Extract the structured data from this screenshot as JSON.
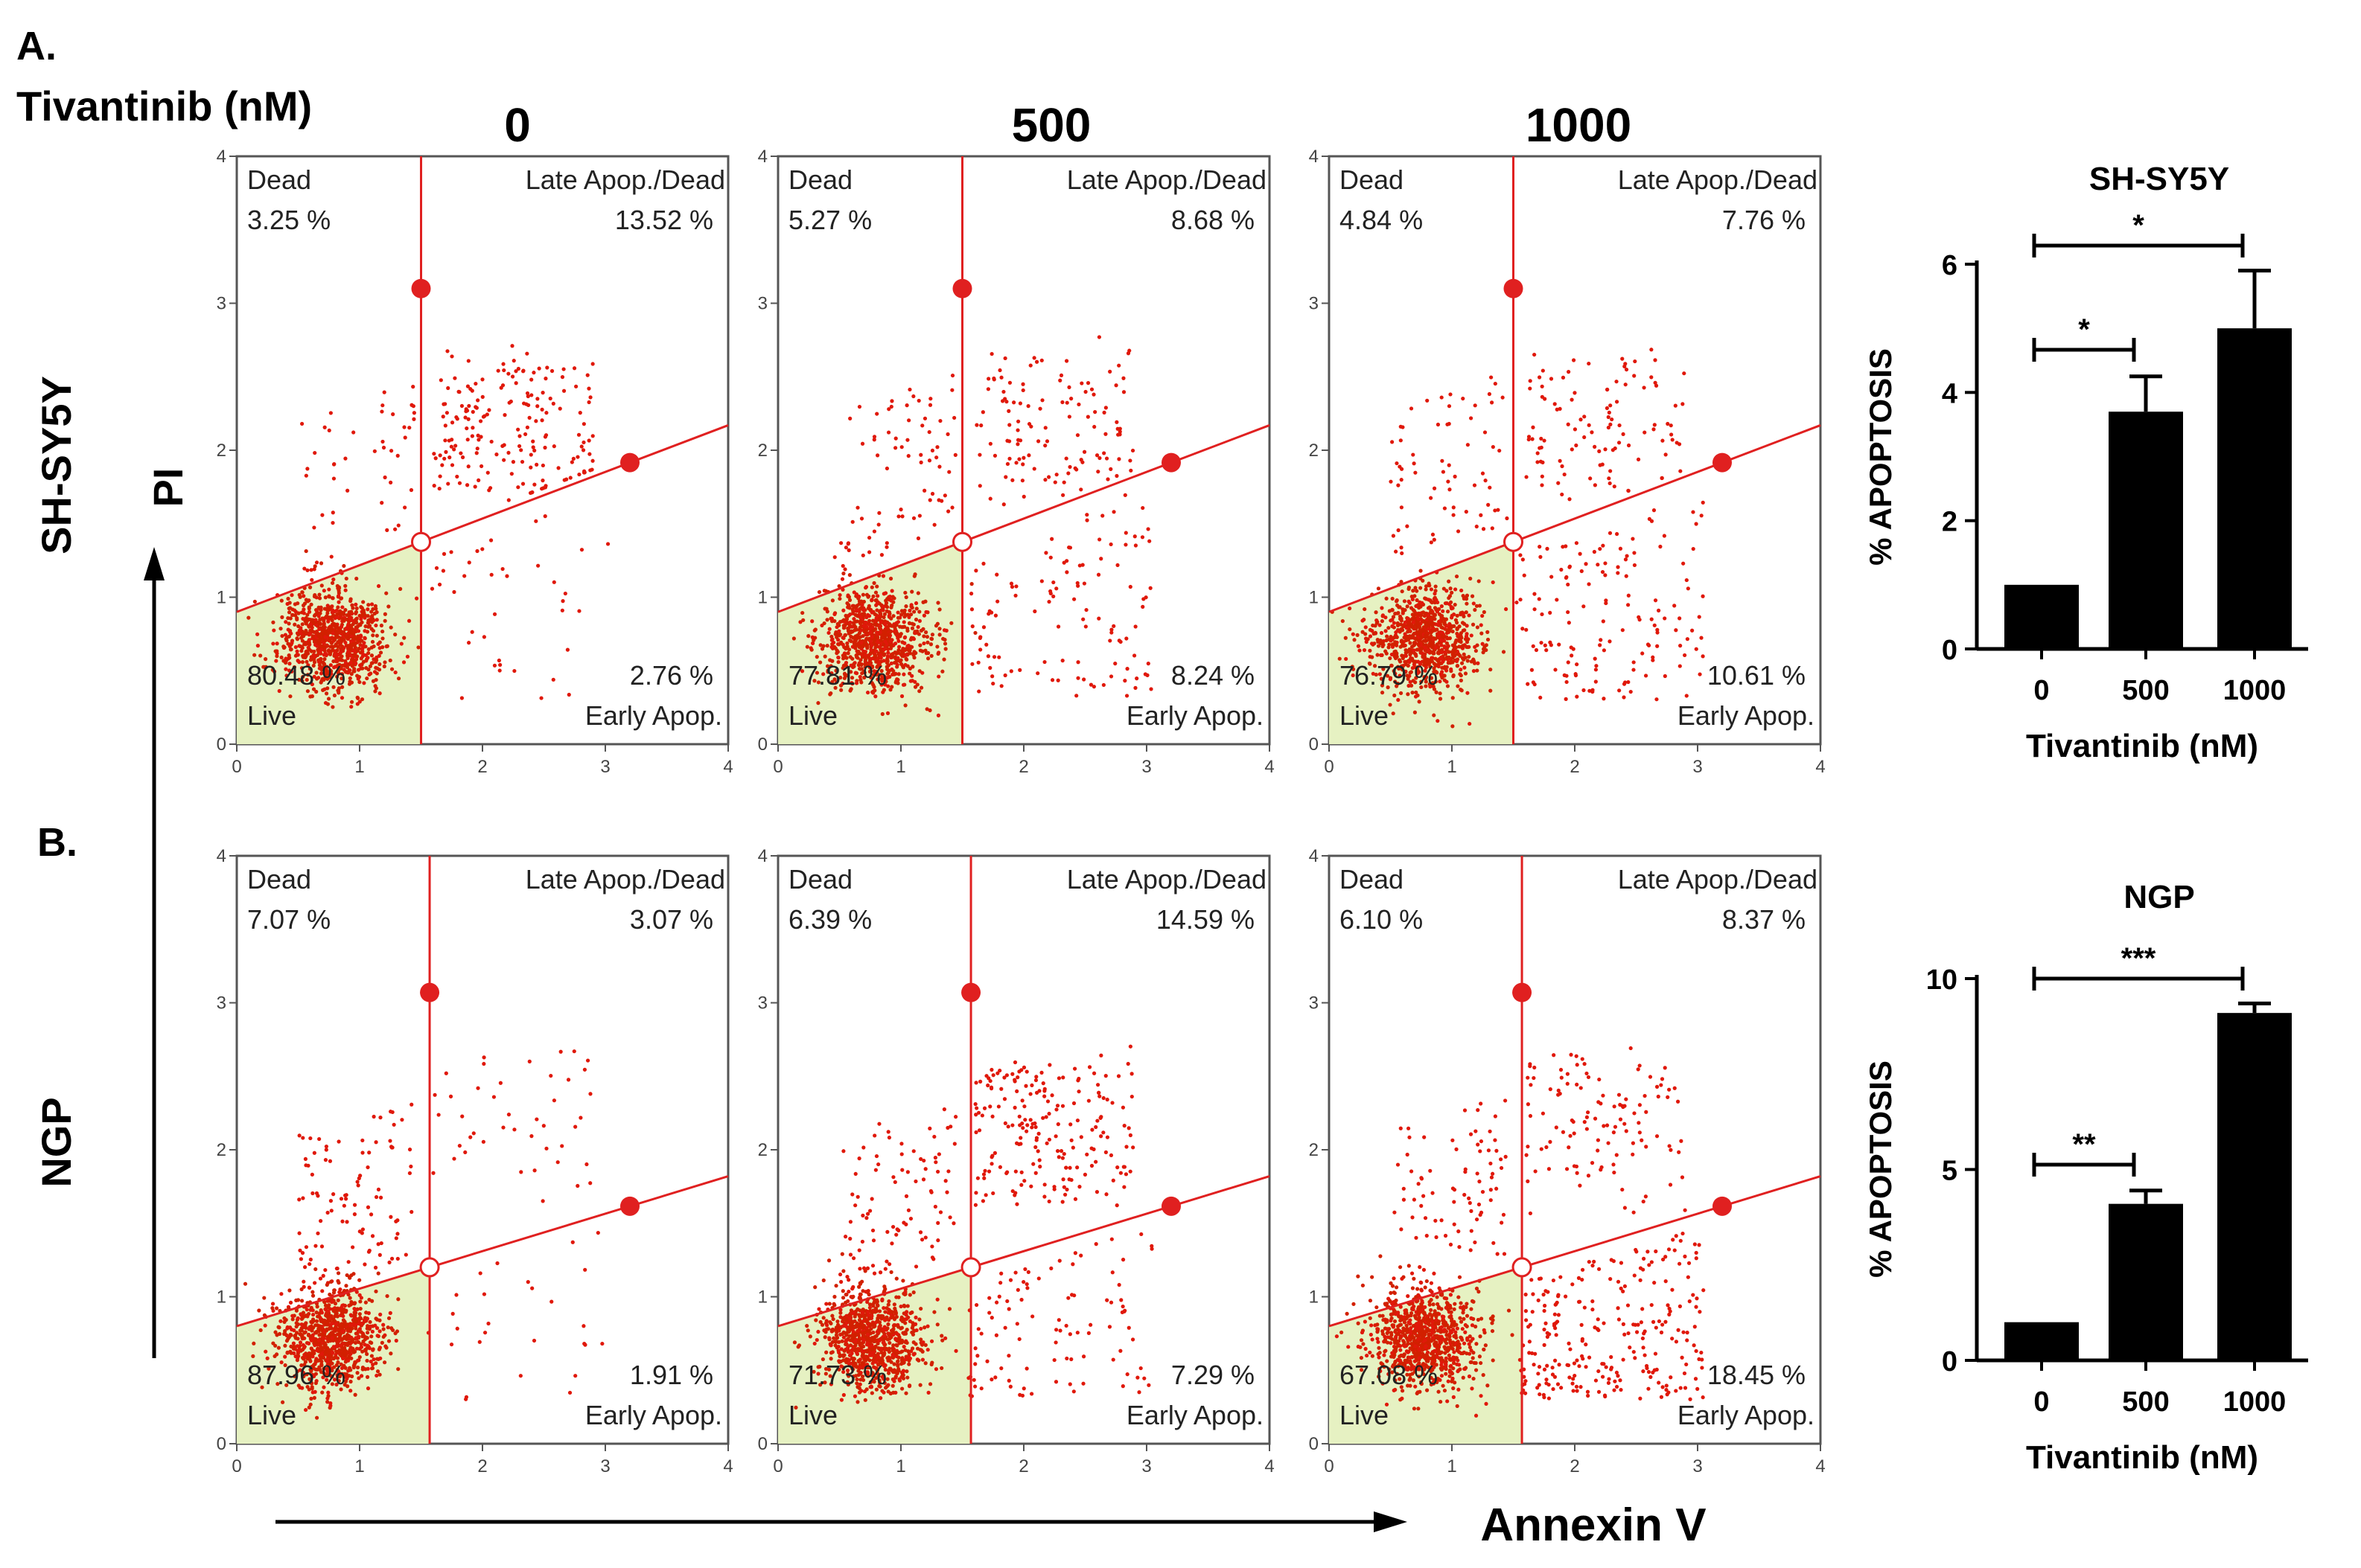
{
  "header": {
    "panel_a_label": "A.",
    "panel_b_label": "B.",
    "treatment_label": "Tivantinib (nM)",
    "doses": [
      "0",
      "500",
      "1000"
    ],
    "row_labels": [
      "SH-SY5Y",
      "NGP"
    ],
    "y_axis_label": "PI",
    "x_axis_label": "Annexin V"
  },
  "flow_plots": [
    {
      "row": "SH-SY5Y",
      "dose": "0",
      "dead_label": "Dead",
      "dead": "3.25 %",
      "late_label": "Late Apop./Dead",
      "late": "13.52 %",
      "live_label": "Live",
      "live": "80.48 %",
      "early_label": "Early Apop.",
      "early": "2.76 %"
    },
    {
      "row": "SH-SY5Y",
      "dose": "500",
      "dead_label": "Dead",
      "dead": "5.27 %",
      "late_label": "Late Apop./Dead",
      "late": "8.68 %",
      "live_label": "Live",
      "live": "77.81 %",
      "early_label": "Early Apop.",
      "early": "8.24 %"
    },
    {
      "row": "SH-SY5Y",
      "dose": "1000",
      "dead_label": "Dead",
      "dead": "4.84 %",
      "late_label": "Late Apop./Dead",
      "late": "7.76 %",
      "live_label": "Live",
      "live": "76.79 %",
      "early_label": "Early Apop.",
      "early": "10.61 %"
    },
    {
      "row": "NGP",
      "dose": "0",
      "dead_label": "Dead",
      "dead": "7.07 %",
      "late_label": "Late Apop./Dead",
      "late": "3.07 %",
      "live_label": "Live",
      "live": "87.96 %",
      "early_label": "Early Apop.",
      "early": "1.91 %"
    },
    {
      "row": "NGP",
      "dose": "500",
      "dead_label": "Dead",
      "dead": "6.39 %",
      "late_label": "Late Apop./Dead",
      "late": "14.59 %",
      "live_label": "Live",
      "live": "71.73 %",
      "early_label": "Early Apop.",
      "early": "7.29 %"
    },
    {
      "row": "NGP",
      "dose": "1000",
      "dead_label": "Dead",
      "dead": "6.10 %",
      "late_label": "Late Apop./Dead",
      "late": "8.37 %",
      "live_label": "Live",
      "live": "67.08 %",
      "early_label": "Early Apop.",
      "early": "18.45 %"
    }
  ],
  "flow_axis": {
    "ticks": [
      "0",
      "1",
      "2",
      "3",
      "4"
    ],
    "xlim": [
      0,
      4
    ],
    "ylim": [
      0,
      4
    ],
    "gates": [
      {
        "vline_x": 1.5,
        "line_y0": 0.9,
        "line_slope": 0.3175,
        "marker_top_y": 3.1,
        "marker_right_x": 3.2
      },
      {
        "vline_x": 1.57,
        "line_y0": 0.8,
        "line_slope": 0.255,
        "marker_top_y": 3.07,
        "marker_right_x": 3.2
      }
    ]
  },
  "chart_data": [
    {
      "type": "bar",
      "title": "SH-SY5Y",
      "categories": [
        "0",
        "500",
        "1000"
      ],
      "values": [
        1.0,
        3.7,
        5.0
      ],
      "errors": [
        0,
        0.55,
        0.9
      ],
      "xlabel": "Tivantinib (nM)",
      "ylabel": "% APOPTOSIS",
      "ylim": [
        0,
        6
      ],
      "yticks": [
        "0",
        "2",
        "4",
        "6"
      ],
      "significance": [
        {
          "from": "0",
          "to": "500",
          "label": "*"
        },
        {
          "from": "0",
          "to": "1000",
          "label": "*"
        }
      ]
    },
    {
      "type": "bar",
      "title": "NGP",
      "categories": [
        "0",
        "500",
        "1000"
      ],
      "values": [
        1.0,
        4.1,
        9.1
      ],
      "errors": [
        0,
        0.35,
        0.25
      ],
      "xlabel": "Tivantinib (nM)",
      "ylabel": "% APOPTOSIS",
      "ylim": [
        0,
        10
      ],
      "yticks": [
        "0",
        "5",
        "10"
      ],
      "significance": [
        {
          "from": "0",
          "to": "500",
          "label": "**"
        },
        {
          "from": "0",
          "to": "1000",
          "label": "***"
        }
      ]
    }
  ],
  "colors": {
    "dot": "#e0180a",
    "dot_dense": "#d22000",
    "gate_line": "#e02020",
    "live_fill": "#e6f1c2",
    "bar": "#000000"
  }
}
